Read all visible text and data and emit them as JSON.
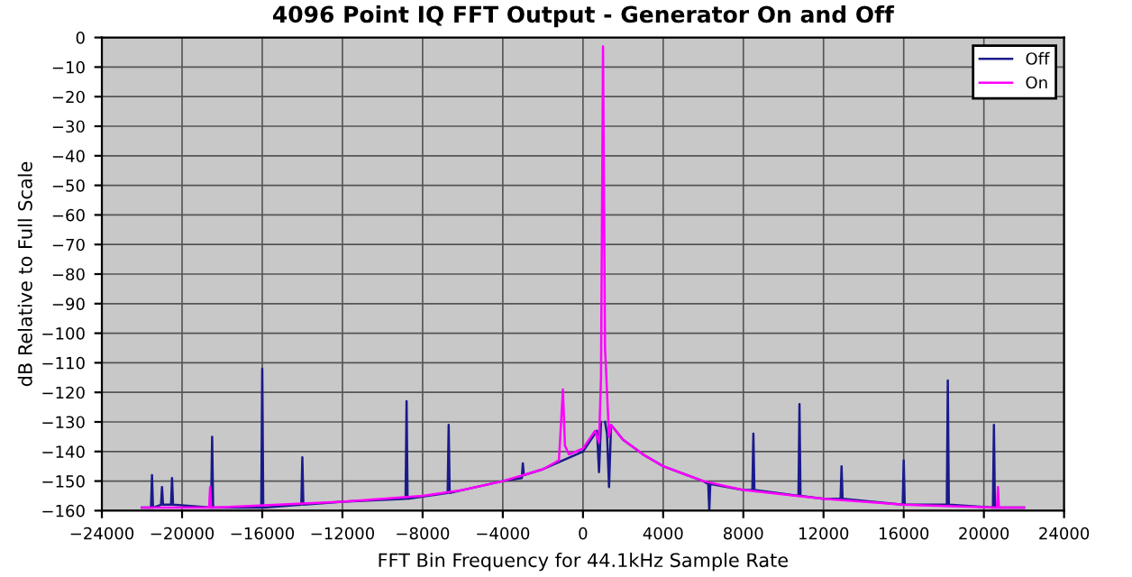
{
  "chart_data": {
    "type": "line",
    "title": "4096 Point IQ FFT Output - Generator On and Off",
    "xlabel": "FFT Bin Frequency for 44.1kHz Sample Rate",
    "ylabel": "dB Relative to Full Scale",
    "xlim": [
      -24000,
      24000
    ],
    "xticks": [
      {
        "value": -24000,
        "label": "−24000"
      },
      {
        "value": -20000,
        "label": "−20000"
      },
      {
        "value": -16000,
        "label": "−16000"
      },
      {
        "value": -12000,
        "label": "−12000"
      },
      {
        "value": -8000,
        "label": "−8000"
      },
      {
        "value": -4000,
        "label": "−4000"
      },
      0,
      4000,
      8000,
      12000,
      16000,
      20000,
      24000
    ],
    "ylim": [
      -160,
      0
    ],
    "yticks": [
      {
        "value": -160,
        "label": "−160"
      },
      {
        "value": -150,
        "label": "−150"
      },
      {
        "value": -140,
        "label": "−140"
      },
      {
        "value": -130,
        "label": "−130"
      },
      {
        "value": -120,
        "label": "−120"
      },
      {
        "value": -110,
        "label": "−110"
      },
      {
        "value": -100,
        "label": "−100"
      },
      {
        "value": -90,
        "label": "−90"
      },
      {
        "value": -80,
        "label": "−80"
      },
      {
        "value": -70,
        "label": "−70"
      },
      {
        "value": -60,
        "label": "−60"
      },
      {
        "value": -50,
        "label": "−50"
      },
      {
        "value": -40,
        "label": "−40"
      },
      {
        "value": -30,
        "label": "−30"
      },
      {
        "value": -20,
        "label": "−20"
      },
      {
        "value": -10,
        "label": "−10"
      },
      0
    ],
    "grid": true,
    "legend": "top right",
    "series": [
      {
        "name": "Off",
        "color": "#1a1a8c",
        "x": [
          -22000,
          -21550,
          -21500,
          -21450,
          -21050,
          -21000,
          -20950,
          -20550,
          -20500,
          -20450,
          -18550,
          -18500,
          -18450,
          -16050,
          -16000,
          -15950,
          -14050,
          -14000,
          -13950,
          -12000,
          -8850,
          -8800,
          -8750,
          -6750,
          -6700,
          -6650,
          -4000,
          -3050,
          -3000,
          -2950,
          -2000,
          -1000,
          0,
          600,
          700,
          800,
          900,
          1000,
          1100,
          1200,
          1300,
          1400,
          2000,
          3000,
          4000,
          6000,
          6250,
          6300,
          6350,
          8000,
          8450,
          8500,
          8550,
          10750,
          10800,
          10850,
          12000,
          12850,
          12900,
          12950,
          15950,
          16000,
          16050,
          18150,
          18200,
          18250,
          20450,
          20500,
          20550,
          22000
        ],
        "values": [
          -159,
          -159,
          -148,
          -159,
          -158,
          -152,
          -158,
          -158,
          -149,
          -158,
          -159,
          -135,
          -159,
          -159,
          -112,
          -159,
          -158,
          -142,
          -158,
          -157,
          -156,
          -123,
          -156,
          -154,
          -131,
          -154,
          -150,
          -149,
          -144,
          -148,
          -146,
          -143,
          -140,
          -134,
          -133,
          -147,
          -130,
          null,
          -130,
          -134,
          -152,
          -131,
          -136,
          -141,
          -145,
          -150,
          -151,
          -160,
          -151,
          -153,
          -153,
          -134,
          -153,
          -155,
          -124,
          -155,
          -156,
          -156,
          -145,
          -156,
          -158,
          -143,
          -158,
          -158,
          -116,
          -158,
          -159,
          -131,
          -159,
          -159
        ]
      },
      {
        "name": "On",
        "color": "#ff00ff",
        "x": [
          -22000,
          -18650,
          -18600,
          -18550,
          -12000,
          -8000,
          -6000,
          -4000,
          -2000,
          -1200,
          -1000,
          -900,
          -700,
          0,
          600,
          800,
          900,
          1000,
          1100,
          1200,
          1300,
          1400,
          2000,
          3000,
          4000,
          6000,
          8000,
          12000,
          16000,
          20650,
          20700,
          20750,
          22000
        ],
        "values": [
          -159,
          -159,
          -152,
          -159,
          -157,
          -155,
          -153,
          -150,
          -146,
          -143,
          -119,
          -138,
          -141,
          -139,
          -133,
          -137,
          -115,
          -3,
          -105,
          -120,
          -135,
          -131,
          -136,
          -141,
          -145,
          -150,
          -153,
          -156,
          -158,
          -159,
          -152,
          -159,
          -159
        ]
      }
    ]
  }
}
